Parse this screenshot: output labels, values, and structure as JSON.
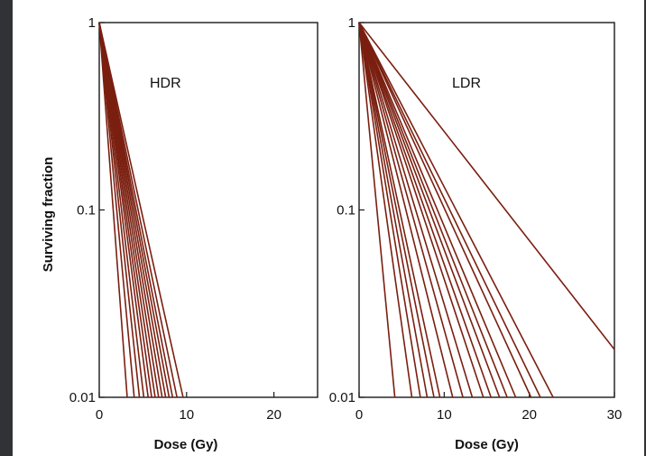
{
  "chart_data": [
    {
      "type": "line",
      "panel": "left",
      "annotation": "HDR",
      "xlabel": "Dose (Gy)",
      "ylabel": "Surviving fraction",
      "xlim": [
        0,
        25
      ],
      "ylim": [
        0.01,
        1
      ],
      "yscale": "log",
      "xticks": [
        0,
        10,
        20
      ],
      "yticks": [
        1,
        0.1,
        0.01
      ],
      "ytick_labels": [
        "1",
        "0.1",
        "0.01"
      ],
      "grid": false,
      "series_color": "#7a1f10",
      "curves": [
        {
          "x": [
            0,
            3.2
          ],
          "y": [
            1,
            0.01
          ]
        },
        {
          "x": [
            0,
            4.0
          ],
          "y": [
            1,
            0.01
          ]
        },
        {
          "x": [
            0,
            4.6
          ],
          "y": [
            1,
            0.01
          ]
        },
        {
          "x": [
            0,
            5.1
          ],
          "y": [
            1,
            0.01
          ]
        },
        {
          "x": [
            0,
            5.6
          ],
          "y": [
            1,
            0.01
          ]
        },
        {
          "x": [
            0,
            6.0
          ],
          "y": [
            1,
            0.01
          ]
        },
        {
          "x": [
            0,
            6.4
          ],
          "y": [
            1,
            0.01
          ]
        },
        {
          "x": [
            0,
            6.8
          ],
          "y": [
            1,
            0.01
          ]
        },
        {
          "x": [
            0,
            7.2
          ],
          "y": [
            1,
            0.01
          ]
        },
        {
          "x": [
            0,
            7.6
          ],
          "y": [
            1,
            0.01
          ]
        },
        {
          "x": [
            0,
            8.0
          ],
          "y": [
            1,
            0.01
          ]
        },
        {
          "x": [
            0,
            8.4
          ],
          "y": [
            1,
            0.01
          ]
        },
        {
          "x": [
            0,
            8.9
          ],
          "y": [
            1,
            0.01
          ]
        },
        {
          "x": [
            0,
            9.6
          ],
          "y": [
            1,
            0.01
          ]
        }
      ]
    },
    {
      "type": "line",
      "panel": "right",
      "annotation": "LDR",
      "xlabel": "Dose (Gy)",
      "ylabel": "",
      "xlim": [
        0,
        30
      ],
      "ylim": [
        0.01,
        1
      ],
      "yscale": "log",
      "xticks": [
        0,
        10,
        20,
        30
      ],
      "yticks": [
        1,
        0.1,
        0.01
      ],
      "ytick_labels": [
        "1",
        "0.1",
        "0.01"
      ],
      "grid": false,
      "series_color": "#7a1f10",
      "curves": [
        {
          "x": [
            0,
            4.2
          ],
          "y": [
            1,
            0.01
          ]
        },
        {
          "x": [
            0,
            6.2
          ],
          "y": [
            1,
            0.01
          ]
        },
        {
          "x": [
            0,
            7.2
          ],
          "y": [
            1,
            0.01
          ]
        },
        {
          "x": [
            0,
            8.0
          ],
          "y": [
            1,
            0.01
          ]
        },
        {
          "x": [
            0,
            8.8
          ],
          "y": [
            1,
            0.01
          ]
        },
        {
          "x": [
            0,
            9.5
          ],
          "y": [
            1,
            0.01
          ]
        },
        {
          "x": [
            0,
            11.0
          ],
          "y": [
            1,
            0.01
          ]
        },
        {
          "x": [
            0,
            12.2
          ],
          "y": [
            1,
            0.01
          ]
        },
        {
          "x": [
            0,
            13.3
          ],
          "y": [
            1,
            0.01
          ]
        },
        {
          "x": [
            0,
            14.6
          ],
          "y": [
            1,
            0.01
          ]
        },
        {
          "x": [
            0,
            15.5
          ],
          "y": [
            1,
            0.01
          ]
        },
        {
          "x": [
            0,
            16.5
          ],
          "y": [
            1,
            0.01
          ]
        },
        {
          "x": [
            0,
            17.4
          ],
          "y": [
            1,
            0.01
          ]
        },
        {
          "x": [
            0,
            18.4
          ],
          "y": [
            1,
            0.01
          ]
        },
        {
          "x": [
            0,
            20.2
          ],
          "y": [
            1,
            0.01
          ]
        },
        {
          "x": [
            0,
            21.3
          ],
          "y": [
            1,
            0.01
          ]
        },
        {
          "x": [
            0,
            22.8
          ],
          "y": [
            1,
            0.01
          ]
        },
        {
          "x": [
            0,
            30
          ],
          "y": [
            1,
            0.018
          ]
        }
      ]
    }
  ]
}
